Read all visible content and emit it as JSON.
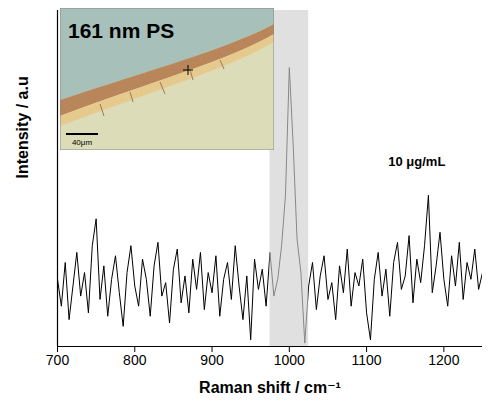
{
  "chart_data": {
    "type": "line",
    "xlabel": "Raman shift / cm⁻¹",
    "ylabel": "Intensity / a.u",
    "xlim": [
      700,
      1250
    ],
    "xticks": [
      700,
      800,
      900,
      1000,
      1100,
      1200
    ],
    "ylim": [
      0,
      100
    ],
    "yticks": [],
    "tick_labels": "x",
    "color": "#000000",
    "x": [
      700,
      705,
      710,
      715,
      720,
      725,
      730,
      735,
      740,
      745,
      750,
      755,
      760,
      765,
      770,
      775,
      780,
      785,
      790,
      795,
      800,
      805,
      810,
      815,
      820,
      825,
      830,
      835,
      840,
      845,
      850,
      855,
      860,
      865,
      870,
      875,
      880,
      885,
      890,
      895,
      900,
      905,
      910,
      915,
      920,
      925,
      930,
      935,
      940,
      945,
      950,
      955,
      960,
      965,
      970,
      975,
      980,
      985,
      990,
      995,
      1000,
      1005,
      1010,
      1015,
      1020,
      1025,
      1030,
      1035,
      1040,
      1045,
      1050,
      1055,
      1060,
      1065,
      1070,
      1075,
      1080,
      1085,
      1090,
      1095,
      1100,
      1105,
      1110,
      1115,
      1120,
      1125,
      1130,
      1135,
      1140,
      1145,
      1150,
      1155,
      1160,
      1165,
      1170,
      1175,
      1180,
      1185,
      1190,
      1195,
      1200,
      1205,
      1210,
      1215,
      1220,
      1225,
      1230,
      1235,
      1240,
      1245,
      1250
    ],
    "values": [
      20,
      12,
      25,
      8,
      18,
      28,
      15,
      22,
      10,
      30,
      38,
      14,
      24,
      9,
      20,
      27,
      16,
      6,
      22,
      30,
      18,
      12,
      26,
      20,
      9,
      24,
      31,
      15,
      19,
      7,
      23,
      29,
      13,
      21,
      10,
      26,
      17,
      28,
      11,
      22,
      16,
      27,
      9,
      20,
      25,
      14,
      30,
      18,
      8,
      21,
      2,
      26,
      17,
      23,
      12,
      28,
      15,
      20,
      30,
      45,
      83,
      60,
      32,
      22,
      1,
      18,
      25,
      11,
      21,
      27,
      14,
      19,
      8,
      24,
      16,
      29,
      12,
      22,
      18,
      26,
      10,
      2,
      20,
      28,
      15,
      23,
      9,
      25,
      31,
      17,
      21,
      33,
      13,
      26,
      19,
      30,
      45,
      16,
      24,
      34,
      20,
      12,
      27,
      18,
      31,
      14,
      25,
      20,
      29,
      17,
      22
    ],
    "shaded_region": [
      975,
      1025
    ],
    "annotations": [
      {
        "text": "10 μg/mL",
        "x": 1165,
        "y": 55
      }
    ],
    "inset": {
      "label": "161 nm PS",
      "scale_bar": "40μm"
    }
  }
}
